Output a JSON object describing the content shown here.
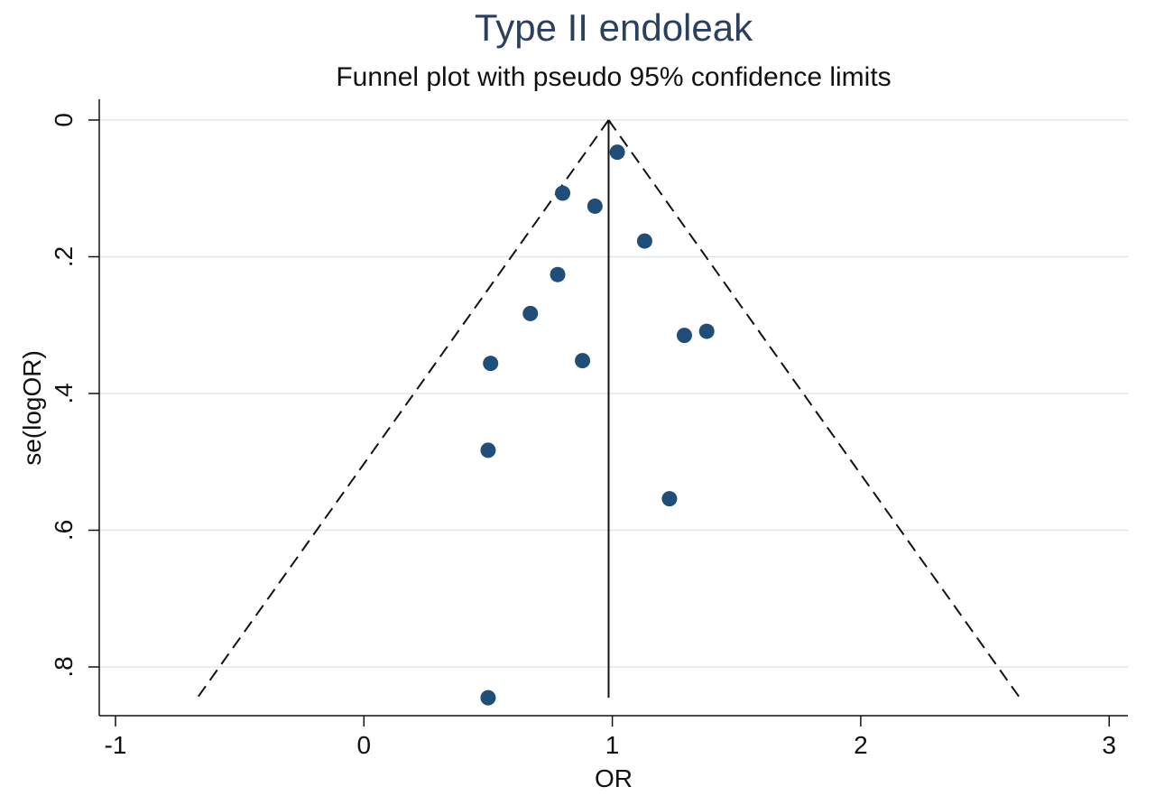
{
  "chart_data": {
    "type": "scatter",
    "title": "Type II endoleak",
    "subtitle": "Funnel plot with pseudo 95% confidence limits",
    "xlabel": "OR",
    "ylabel": "se(logOR)",
    "xlim": [
      -1.05,
      3.05
    ],
    "ylim": [
      0.0,
      0.87
    ],
    "y_inverted": true,
    "x_ticks": [
      {
        "value": -1,
        "label": "-1"
      },
      {
        "value": 0,
        "label": "0"
      },
      {
        "value": 1,
        "label": "1"
      },
      {
        "value": 2,
        "label": "2"
      },
      {
        "value": 3,
        "label": "3"
      }
    ],
    "y_ticks": [
      {
        "value": 0.0,
        "label": "0"
      },
      {
        "value": 0.2,
        "label": ".2"
      },
      {
        "value": 0.4,
        "label": ".4"
      },
      {
        "value": 0.6,
        "label": ".6"
      },
      {
        "value": 0.8,
        "label": ".8"
      }
    ],
    "grid": {
      "horizontal": true,
      "vertical": false
    },
    "reference_line": {
      "x": 0.985,
      "y_top": 0.0,
      "y_bottom": 0.845
    },
    "ci_limits": {
      "apex": [
        0.985,
        0.0
      ],
      "left_bottom": [
        -0.67,
        0.845
      ],
      "right_bottom": [
        2.64,
        0.845
      ]
    },
    "points": [
      {
        "x": 1.02,
        "y": 0.047
      },
      {
        "x": 0.8,
        "y": 0.107
      },
      {
        "x": 0.93,
        "y": 0.126
      },
      {
        "x": 1.13,
        "y": 0.177
      },
      {
        "x": 0.78,
        "y": 0.226
      },
      {
        "x": 0.67,
        "y": 0.283
      },
      {
        "x": 1.29,
        "y": 0.315
      },
      {
        "x": 1.38,
        "y": 0.309
      },
      {
        "x": 0.51,
        "y": 0.356
      },
      {
        "x": 0.88,
        "y": 0.352
      },
      {
        "x": 0.5,
        "y": 0.483
      },
      {
        "x": 1.23,
        "y": 0.554
      },
      {
        "x": 0.5,
        "y": 0.845
      }
    ],
    "colors": {
      "title": "#2b3f5f",
      "marker": "#1f4e79",
      "grid": "#dde7ea"
    }
  }
}
